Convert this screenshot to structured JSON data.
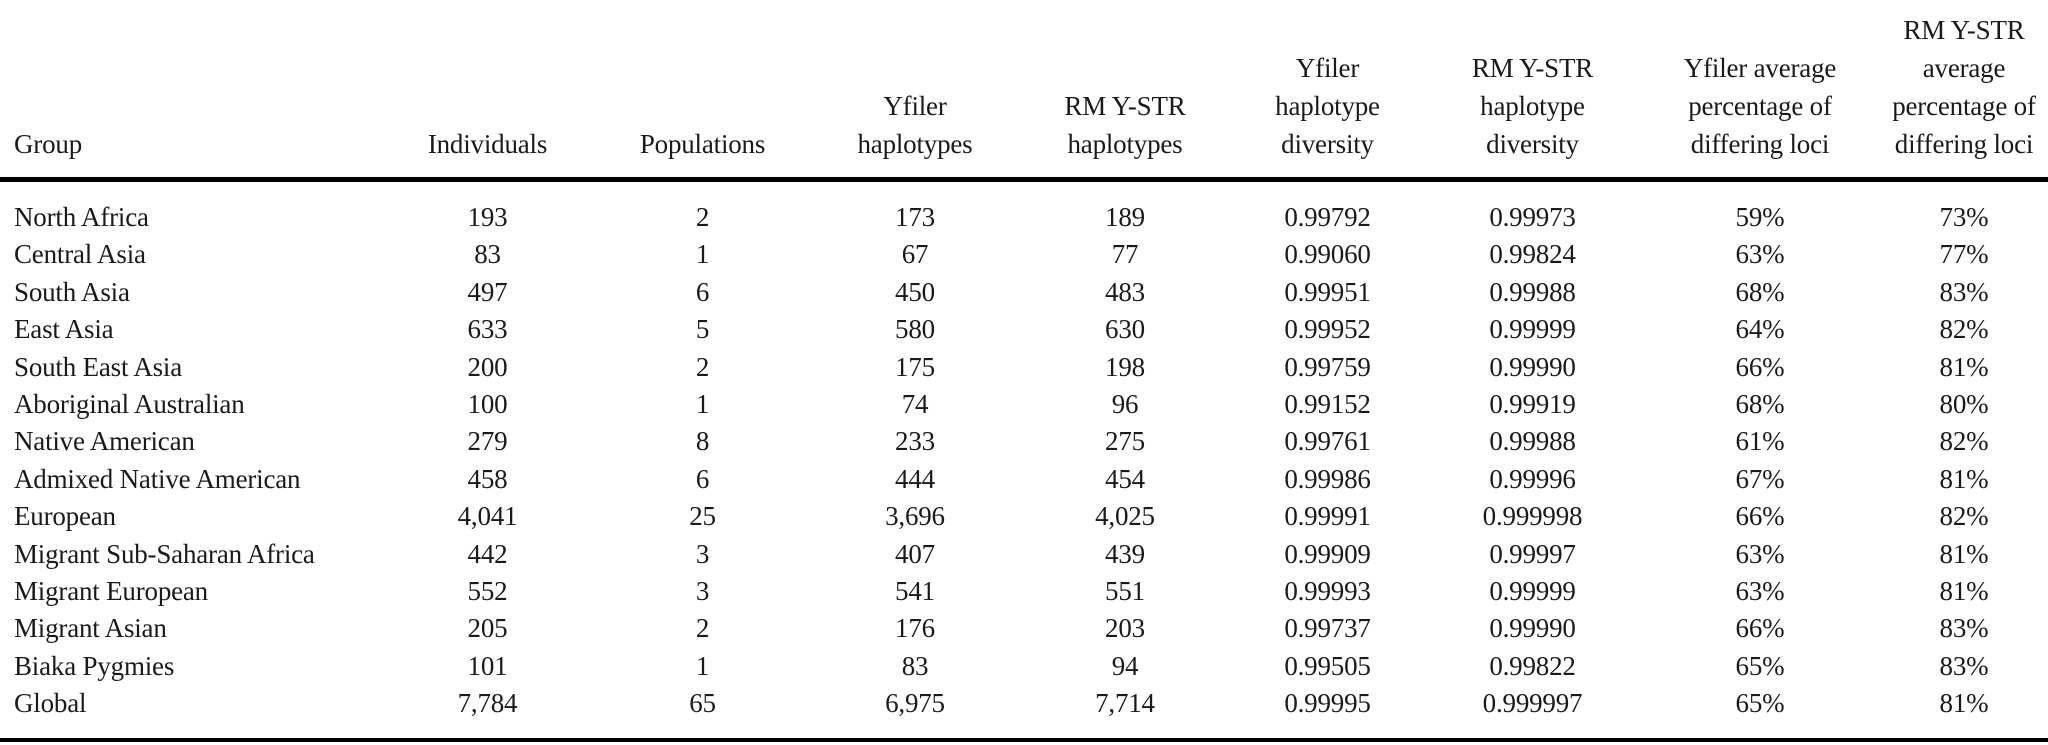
{
  "table": {
    "columns": [
      {
        "label": "Group"
      },
      {
        "label": "Individuals"
      },
      {
        "label": "Populations"
      },
      {
        "label": "Yfiler\nhaplotypes"
      },
      {
        "label": "RM Y-STR\nhaplotypes"
      },
      {
        "label": "Yfiler\nhaplotype\ndiversity"
      },
      {
        "label": "RM Y-STR\nhaplotype\ndiversity"
      },
      {
        "label": "Yfiler average\npercentage of\ndiffering loci"
      },
      {
        "label": "RM Y-STR\naverage\npercentage of\ndiffering loci"
      }
    ],
    "rows": [
      [
        "North Africa",
        "193",
        "2",
        "173",
        "189",
        "0.99792",
        "0.99973",
        "59%",
        "73%"
      ],
      [
        "Central Asia",
        "83",
        "1",
        "67",
        "77",
        "0.99060",
        "0.99824",
        "63%",
        "77%"
      ],
      [
        "South Asia",
        "497",
        "6",
        "450",
        "483",
        "0.99951",
        "0.99988",
        "68%",
        "83%"
      ],
      [
        "East Asia",
        "633",
        "5",
        "580",
        "630",
        "0.99952",
        "0.99999",
        "64%",
        "82%"
      ],
      [
        "South East Asia",
        "200",
        "2",
        "175",
        "198",
        "0.99759",
        "0.99990",
        "66%",
        "81%"
      ],
      [
        "Aboriginal Australian",
        "100",
        "1",
        "74",
        "96",
        "0.99152",
        "0.99919",
        "68%",
        "80%"
      ],
      [
        "Native American",
        "279",
        "8",
        "233",
        "275",
        "0.99761",
        "0.99988",
        "61%",
        "82%"
      ],
      [
        "Admixed Native American",
        "458",
        "6",
        "444",
        "454",
        "0.99986",
        "0.99996",
        "67%",
        "81%"
      ],
      [
        "European",
        "4,041",
        "25",
        "3,696",
        "4,025",
        "0.99991",
        "0.999998",
        "66%",
        "82%"
      ],
      [
        "Migrant Sub-Saharan Africa",
        "442",
        "3",
        "407",
        "439",
        "0.99909",
        "0.99997",
        "63%",
        "81%"
      ],
      [
        "Migrant European",
        "552",
        "3",
        "541",
        "551",
        "0.99993",
        "0.99999",
        "63%",
        "81%"
      ],
      [
        "Migrant Asian",
        "205",
        "2",
        "176",
        "203",
        "0.99737",
        "0.99990",
        "66%",
        "83%"
      ],
      [
        "Biaka Pygmies",
        "101",
        "1",
        "83",
        "94",
        "0.99505",
        "0.99822",
        "65%",
        "83%"
      ],
      [
        "Global",
        "7,784",
        "65",
        "6,975",
        "7,714",
        "0.99995",
        "0.999997",
        "65%",
        "81%"
      ]
    ]
  }
}
